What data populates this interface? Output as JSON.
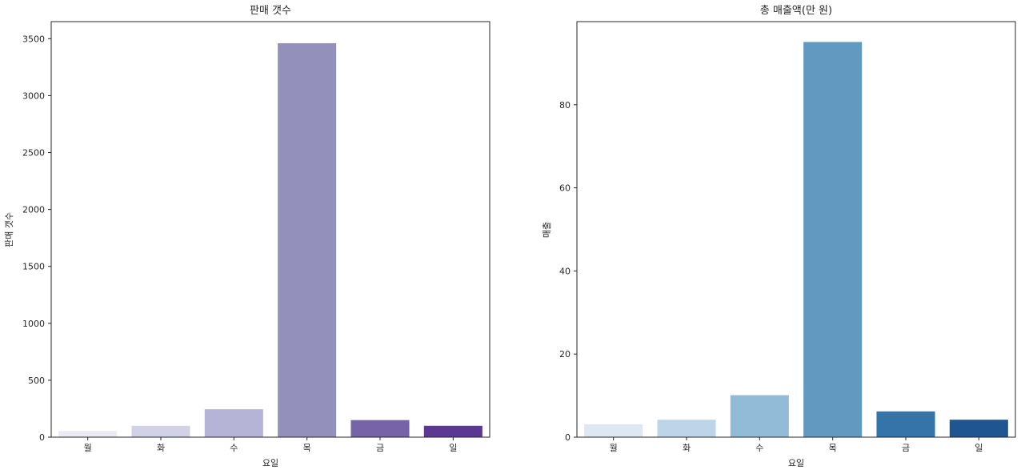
{
  "chart_data": [
    {
      "type": "bar",
      "title": "판매 갯수",
      "xlabel": "요일",
      "ylabel": "판매 갯수",
      "categories": [
        "월",
        "화",
        "수",
        "목",
        "금",
        "일"
      ],
      "values": [
        55,
        100,
        245,
        3460,
        150,
        100
      ],
      "ylim": [
        0,
        3650
      ],
      "yticks": [
        0,
        500,
        1000,
        1500,
        2000,
        2500,
        3000,
        3500
      ],
      "colors": [
        "#ecebf4",
        "#d2d2e7",
        "#b5b4d6",
        "#9391bb",
        "#7763a8",
        "#5b3891"
      ],
      "grid": false
    },
    {
      "type": "bar",
      "title": "총 매출액(만 원)",
      "xlabel": "요일",
      "ylabel": "매출",
      "categories": [
        "월",
        "화",
        "수",
        "목",
        "금",
        "일"
      ],
      "values": [
        3.1,
        4.2,
        10.1,
        95.1,
        6.2,
        4.2
      ],
      "ylim": [
        0,
        100
      ],
      "yticks": [
        0,
        20,
        40,
        60,
        80
      ],
      "colors": [
        "#dde8f3",
        "#bed5e9",
        "#92bbd8",
        "#6199c0",
        "#3474a8",
        "#1f5590"
      ],
      "grid": false
    }
  ]
}
